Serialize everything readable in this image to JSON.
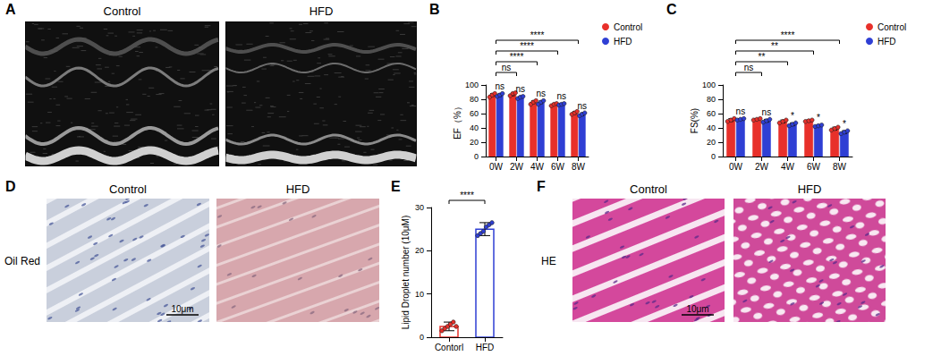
{
  "panel_labels": [
    "A",
    "B",
    "C",
    "D",
    "E",
    "F"
  ],
  "images": {
    "A": {
      "labels": [
        "Control",
        "HFD"
      ]
    },
    "D": {
      "labels": [
        "Control",
        "HFD"
      ],
      "row_label": "Oil Red",
      "scale_bar": "10μm"
    },
    "F": {
      "labels": [
        "Control",
        "HFD"
      ],
      "row_label": "HE",
      "scale_bar": "10μm"
    }
  },
  "chart_data": [
    {
      "type": "bar",
      "ylabel": "EF（%）",
      "categories": [
        "0W",
        "2W",
        "4W",
        "6W",
        "8W"
      ],
      "series": [
        {
          "name": "Control",
          "color": "#e8302a",
          "values": [
            86,
            87,
            76,
            73,
            61
          ],
          "errors": [
            2,
            2,
            2,
            1,
            2
          ],
          "points": [
            [
              83,
              86,
              88
            ],
            [
              85,
              88,
              89
            ],
            [
              73,
              76,
              78
            ],
            [
              71,
              73,
              74
            ],
            [
              59,
              61,
              63
            ]
          ]
        },
        {
          "name": "HFD",
          "color": "#2f3fd4",
          "values": [
            86,
            83,
            76,
            73,
            59
          ],
          "errors": [
            2,
            1,
            2,
            1,
            2
          ],
          "points": [
            [
              84,
              86,
              88
            ],
            [
              81,
              83,
              84
            ],
            [
              73,
              76,
              78
            ],
            [
              72,
              73,
              74
            ],
            [
              57,
              59,
              61
            ]
          ]
        }
      ],
      "ylim": [
        0,
        100
      ],
      "yticks": [
        0,
        20,
        40,
        60,
        80,
        100
      ],
      "grid": false,
      "legend": "top right",
      "pair_labels": [
        "ns",
        "ns",
        "ns",
        "ns",
        "ns"
      ],
      "brackets": [
        {
          "from": "0W",
          "to": "2W",
          "label": "ns"
        },
        {
          "from": "0W",
          "to": "4W",
          "label": "****"
        },
        {
          "from": "0W",
          "to": "6W",
          "label": "****"
        },
        {
          "from": "0W",
          "to": "8W",
          "label": "****"
        }
      ]
    },
    {
      "type": "bar",
      "ylabel": "FS(%)",
      "categories": [
        "0W",
        "2W",
        "4W",
        "6W",
        "8W"
      ],
      "series": [
        {
          "name": "Control",
          "color": "#e8302a",
          "values": [
            51,
            52,
            49,
            50,
            39
          ],
          "errors": [
            2,
            1,
            2,
            1,
            2
          ],
          "points": [
            [
              49,
              51,
              53
            ],
            [
              51,
              52,
              53
            ],
            [
              47,
              49,
              51
            ],
            [
              49,
              50,
              51
            ],
            [
              37,
              39,
              41
            ]
          ]
        },
        {
          "name": "HFD",
          "color": "#2f3fd4",
          "values": [
            52,
            50,
            45,
            43,
            34
          ],
          "errors": [
            1,
            2,
            2,
            1,
            2
          ],
          "points": [
            [
              51,
              52,
              53
            ],
            [
              48,
              50,
              52
            ],
            [
              43,
              45,
              47
            ],
            [
              42,
              43,
              44
            ],
            [
              32,
              34,
              36
            ]
          ]
        }
      ],
      "ylim": [
        0,
        100
      ],
      "yticks": [
        0,
        20,
        40,
        60,
        80,
        100
      ],
      "grid": false,
      "legend": "top right",
      "pair_labels": [
        "ns",
        "ns",
        "*",
        "*",
        "*"
      ],
      "brackets": [
        {
          "from": "0W",
          "to": "2W",
          "label": "ns"
        },
        {
          "from": "0W",
          "to": "4W",
          "label": "**"
        },
        {
          "from": "0W",
          "to": "6W",
          "label": "**"
        },
        {
          "from": "0W",
          "to": "8W",
          "label": "****"
        }
      ]
    },
    {
      "type": "bar",
      "ylabel": "Lipid Droplet number (10μM)",
      "categories": [
        "Contorl",
        "HFD"
      ],
      "values": [
        2.5,
        25
      ],
      "colors": [
        "#e8302a",
        "#2f3fd4"
      ],
      "errors": [
        1,
        1.5
      ],
      "points": [
        [
          1.5,
          2,
          2.5,
          3,
          3.5,
          2.5
        ],
        [
          23.5,
          24,
          24.5,
          25.5,
          26,
          26.5
        ]
      ],
      "ylim": [
        0,
        30
      ],
      "yticks": [
        0,
        10,
        20,
        30
      ],
      "grid": false,
      "brackets": [
        {
          "from": "Contorl",
          "to": "HFD",
          "label": "****"
        }
      ]
    }
  ]
}
